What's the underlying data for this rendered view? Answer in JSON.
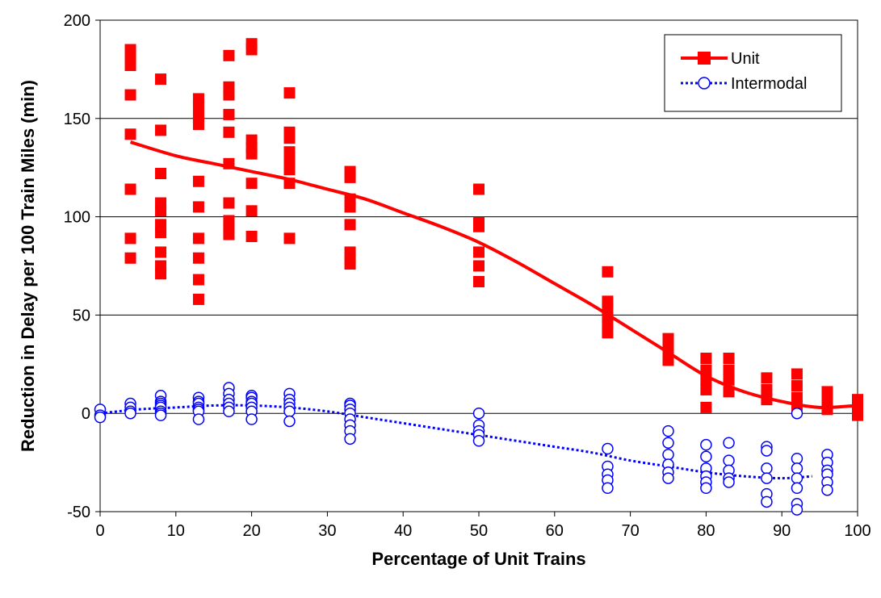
{
  "chart_data": {
    "type": "scatter",
    "xlabel": "Percentage of Unit Trains",
    "ylabel": "Reduction in Delay per 100 Train Miles (min)",
    "xlim": [
      0,
      100
    ],
    "ylim": [
      -50,
      200
    ],
    "xticks": [
      0,
      10,
      20,
      30,
      40,
      50,
      60,
      70,
      80,
      90,
      100
    ],
    "yticks": [
      -50,
      0,
      50,
      100,
      150,
      200
    ],
    "grid": "horizontal",
    "legend_position": "top-right",
    "series": [
      {
        "name": "Unit",
        "color": "#ff0000",
        "marker": "square",
        "trend": "smooth",
        "points": [
          [
            4,
            185
          ],
          [
            4,
            182
          ],
          [
            4,
            177
          ],
          [
            4,
            162
          ],
          [
            4,
            142
          ],
          [
            4,
            114
          ],
          [
            4,
            89
          ],
          [
            4,
            79
          ],
          [
            8,
            170
          ],
          [
            8,
            144
          ],
          [
            8,
            122
          ],
          [
            8,
            107
          ],
          [
            8,
            103
          ],
          [
            8,
            96
          ],
          [
            8,
            92
          ],
          [
            8,
            82
          ],
          [
            8,
            75
          ],
          [
            8,
            71
          ],
          [
            13,
            160
          ],
          [
            13,
            156
          ],
          [
            13,
            151
          ],
          [
            13,
            147
          ],
          [
            13,
            118
          ],
          [
            13,
            105
          ],
          [
            13,
            89
          ],
          [
            13,
            79
          ],
          [
            13,
            68
          ],
          [
            13,
            58
          ],
          [
            17,
            182
          ],
          [
            17,
            166
          ],
          [
            17,
            162
          ],
          [
            17,
            152
          ],
          [
            17,
            143
          ],
          [
            17,
            127
          ],
          [
            17,
            107
          ],
          [
            17,
            98
          ],
          [
            17,
            94
          ],
          [
            17,
            91
          ],
          [
            20,
            188
          ],
          [
            20,
            185
          ],
          [
            20,
            139
          ],
          [
            20,
            135
          ],
          [
            20,
            132
          ],
          [
            20,
            117
          ],
          [
            20,
            103
          ],
          [
            20,
            90
          ],
          [
            25,
            163
          ],
          [
            25,
            143
          ],
          [
            25,
            140
          ],
          [
            25,
            133
          ],
          [
            25,
            129
          ],
          [
            25,
            124
          ],
          [
            25,
            117
          ],
          [
            25,
            89
          ],
          [
            33,
            123
          ],
          [
            33,
            120
          ],
          [
            33,
            109
          ],
          [
            33,
            105
          ],
          [
            33,
            96
          ],
          [
            33,
            82
          ],
          [
            33,
            79
          ],
          [
            33,
            76
          ],
          [
            50,
            114
          ],
          [
            50,
            97
          ],
          [
            50,
            95
          ],
          [
            50,
            82
          ],
          [
            50,
            75
          ],
          [
            50,
            67
          ],
          [
            67,
            72
          ],
          [
            67,
            57
          ],
          [
            67,
            53
          ],
          [
            67,
            49
          ],
          [
            67,
            45
          ],
          [
            67,
            41
          ],
          [
            75,
            38
          ],
          [
            75,
            35
          ],
          [
            75,
            31
          ],
          [
            75,
            27
          ],
          [
            80,
            28
          ],
          [
            80,
            22
          ],
          [
            80,
            17
          ],
          [
            80,
            12
          ],
          [
            80,
            3
          ],
          [
            83,
            28
          ],
          [
            83,
            22
          ],
          [
            83,
            17
          ],
          [
            83,
            11
          ],
          [
            88,
            18
          ],
          [
            88,
            12
          ],
          [
            88,
            7
          ],
          [
            92,
            20
          ],
          [
            92,
            14
          ],
          [
            92,
            8
          ],
          [
            92,
            4
          ],
          [
            96,
            11
          ],
          [
            96,
            6
          ],
          [
            96,
            2
          ],
          [
            100,
            7
          ],
          [
            100,
            3
          ],
          [
            100,
            -1
          ]
        ],
        "trend_points": [
          [
            4,
            138
          ],
          [
            10,
            131
          ],
          [
            15,
            127
          ],
          [
            20,
            123
          ],
          [
            25,
            119
          ],
          [
            30,
            114
          ],
          [
            35,
            109
          ],
          [
            40,
            102
          ],
          [
            45,
            95
          ],
          [
            50,
            87
          ],
          [
            55,
            77
          ],
          [
            60,
            66
          ],
          [
            65,
            55
          ],
          [
            70,
            43
          ],
          [
            75,
            31
          ],
          [
            80,
            19
          ],
          [
            85,
            11
          ],
          [
            90,
            6
          ],
          [
            95,
            3
          ],
          [
            100,
            4
          ]
        ]
      },
      {
        "name": "Intermodal",
        "color": "#0000ff",
        "marker": "circle-open",
        "trend": "dotted",
        "points": [
          [
            0,
            2
          ],
          [
            0,
            -1
          ],
          [
            0,
            -2
          ],
          [
            4,
            5
          ],
          [
            4,
            3
          ],
          [
            4,
            1
          ],
          [
            4,
            0
          ],
          [
            8,
            9
          ],
          [
            8,
            6
          ],
          [
            8,
            5
          ],
          [
            8,
            4
          ],
          [
            8,
            3
          ],
          [
            8,
            1
          ],
          [
            8,
            0
          ],
          [
            8,
            -1
          ],
          [
            13,
            8
          ],
          [
            13,
            6
          ],
          [
            13,
            5
          ],
          [
            13,
            3
          ],
          [
            13,
            2
          ],
          [
            13,
            1
          ],
          [
            13,
            -3
          ],
          [
            17,
            13
          ],
          [
            17,
            10
          ],
          [
            17,
            7
          ],
          [
            17,
            5
          ],
          [
            17,
            3
          ],
          [
            17,
            1
          ],
          [
            20,
            9
          ],
          [
            20,
            8
          ],
          [
            20,
            6
          ],
          [
            20,
            5
          ],
          [
            20,
            3
          ],
          [
            20,
            1
          ],
          [
            20,
            -3
          ],
          [
            25,
            10
          ],
          [
            25,
            7
          ],
          [
            25,
            5
          ],
          [
            25,
            3
          ],
          [
            25,
            1
          ],
          [
            25,
            -4
          ],
          [
            33,
            5
          ],
          [
            33,
            4
          ],
          [
            33,
            2
          ],
          [
            33,
            0
          ],
          [
            33,
            -3
          ],
          [
            33,
            -6
          ],
          [
            33,
            -9
          ],
          [
            33,
            -13
          ],
          [
            50,
            0
          ],
          [
            50,
            -6
          ],
          [
            50,
            -9
          ],
          [
            50,
            -11
          ],
          [
            50,
            -14
          ],
          [
            67,
            -18
          ],
          [
            67,
            -27
          ],
          [
            67,
            -31
          ],
          [
            67,
            -34
          ],
          [
            67,
            -38
          ],
          [
            75,
            -9
          ],
          [
            75,
            -15
          ],
          [
            75,
            -21
          ],
          [
            75,
            -26
          ],
          [
            75,
            -30
          ],
          [
            75,
            -33
          ],
          [
            80,
            -16
          ],
          [
            80,
            -22
          ],
          [
            80,
            -28
          ],
          [
            80,
            -32
          ],
          [
            80,
            -35
          ],
          [
            80,
            -38
          ],
          [
            83,
            -15
          ],
          [
            83,
            -24
          ],
          [
            83,
            -29
          ],
          [
            83,
            -33
          ],
          [
            83,
            -35
          ],
          [
            88,
            -17
          ],
          [
            88,
            -19
          ],
          [
            88,
            -28
          ],
          [
            88,
            -33
          ],
          [
            88,
            -41
          ],
          [
            88,
            -45
          ],
          [
            92,
            0
          ],
          [
            92,
            -23
          ],
          [
            92,
            -28
          ],
          [
            92,
            -33
          ],
          [
            92,
            -38
          ],
          [
            92,
            -46
          ],
          [
            92,
            -49
          ],
          [
            96,
            -21
          ],
          [
            96,
            -25
          ],
          [
            96,
            -29
          ],
          [
            96,
            -31
          ],
          [
            96,
            -35
          ],
          [
            96,
            -39
          ]
        ],
        "trend_points": [
          [
            0,
            0
          ],
          [
            5,
            2
          ],
          [
            10,
            3
          ],
          [
            15,
            4
          ],
          [
            20,
            4
          ],
          [
            25,
            3
          ],
          [
            30,
            1
          ],
          [
            35,
            -2
          ],
          [
            40,
            -5
          ],
          [
            45,
            -8
          ],
          [
            50,
            -11
          ],
          [
            55,
            -14
          ],
          [
            60,
            -17
          ],
          [
            65,
            -20
          ],
          [
            70,
            -24
          ],
          [
            75,
            -27
          ],
          [
            80,
            -30
          ],
          [
            85,
            -32
          ],
          [
            90,
            -33
          ],
          [
            94,
            -32
          ]
        ]
      }
    ]
  }
}
